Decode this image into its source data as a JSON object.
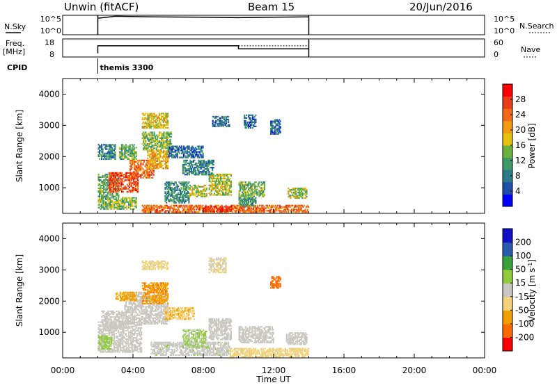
{
  "header": {
    "radar": "Unwin (fitACF)",
    "beam": "Beam 15",
    "date": "20/Jun/2016"
  },
  "panels": {
    "nsky_label": "N.Sky",
    "nsearch_label": "N.Search",
    "freq_label": "Freq.",
    "freq_unit": "[MHz]",
    "nave_label": "Nave",
    "cpid_label": "CPID",
    "cpid_value": "themis 3300",
    "noise_ticks": [
      "10^5",
      "10^0"
    ],
    "freq_ticks": [
      "18",
      "8"
    ],
    "nave_ticks": [
      "60",
      "0"
    ]
  },
  "colors": {
    "power": [
      "#0000ff",
      "#1f4fa8",
      "#2b7a8a",
      "#3f9a6a",
      "#6ab23c",
      "#e8c20a",
      "#f29a10",
      "#f06a1a",
      "#e83c1a",
      "#ff0000"
    ],
    "velocity": [
      "#ff0000",
      "#ff6a00",
      "#f2a000",
      "#f2d27a",
      "#c8c8c0",
      "#8ecc3a",
      "#3aa03a",
      "#2a5ab0",
      "#1010c8"
    ]
  },
  "chart_data": [
    {
      "type": "heatmap",
      "name": "power",
      "title": "",
      "ylabel": "Slant Range [km]",
      "xlim": [
        0,
        24
      ],
      "ylim": [
        180,
        4500
      ],
      "yticks": [
        "4000",
        "3000",
        "2000",
        "1000"
      ],
      "ytick_values": [
        4000,
        3000,
        2000,
        1000
      ],
      "colorbar_label": "Power [dB]",
      "colorbar_ticks": [
        "28",
        "24",
        "20",
        "16",
        "12",
        "8",
        "4"
      ],
      "colorbar_tick_values": [
        28,
        24,
        20,
        16,
        12,
        8,
        4
      ],
      "colorbar_range": [
        0,
        32
      ],
      "grid": false,
      "regions": [
        {
          "t": [
            2.0,
            4.2
          ],
          "r": [
            300,
            700
          ],
          "value": 14
        },
        {
          "t": [
            2.0,
            3.2
          ],
          "r": [
            700,
            1450
          ],
          "value": 12
        },
        {
          "t": [
            2.6,
            4.3
          ],
          "r": [
            850,
            1500
          ],
          "value": 26
        },
        {
          "t": [
            3.8,
            5.2
          ],
          "r": [
            1300,
            1900
          ],
          "value": 24
        },
        {
          "t": [
            4.8,
            6.0
          ],
          "r": [
            1600,
            2200
          ],
          "value": 20
        },
        {
          "t": [
            3.2,
            4.2
          ],
          "r": [
            1900,
            2400
          ],
          "value": 13
        },
        {
          "t": [
            4.5,
            6.2
          ],
          "r": [
            2200,
            2800
          ],
          "value": 14
        },
        {
          "t": [
            4.5,
            6.0
          ],
          "r": [
            2900,
            3400
          ],
          "value": 18
        },
        {
          "t": [
            2.0,
            3.0
          ],
          "r": [
            1900,
            2400
          ],
          "value": 9
        },
        {
          "t": [
            4.5,
            14.0
          ],
          "r": [
            200,
            450
          ],
          "value": 24
        },
        {
          "t": [
            8.0,
            9.6
          ],
          "r": [
            230,
            420
          ],
          "value": 28
        },
        {
          "t": [
            5.8,
            7.2
          ],
          "r": [
            500,
            1200
          ],
          "value": 10
        },
        {
          "t": [
            7.2,
            8.2
          ],
          "r": [
            700,
            1100
          ],
          "value": 16
        },
        {
          "t": [
            8.3,
            9.6
          ],
          "r": [
            750,
            1450
          ],
          "value": 16
        },
        {
          "t": [
            10.0,
            11.5
          ],
          "r": [
            700,
            1200
          ],
          "value": 13
        },
        {
          "t": [
            12.8,
            13.9
          ],
          "r": [
            650,
            1000
          ],
          "value": 16
        },
        {
          "t": [
            6.8,
            8.6
          ],
          "r": [
            1400,
            1900
          ],
          "value": 9
        },
        {
          "t": [
            6.0,
            8.0
          ],
          "r": [
            1950,
            2350
          ],
          "value": 7
        },
        {
          "t": [
            8.5,
            9.5
          ],
          "r": [
            2950,
            3300
          ],
          "value": 7
        },
        {
          "t": [
            10.3,
            11.0
          ],
          "r": [
            2900,
            3350
          ],
          "value": 7
        },
        {
          "t": [
            11.8,
            12.4
          ],
          "r": [
            2700,
            3200
          ],
          "value": 7
        },
        {
          "t": [
            10.0,
            11.0
          ],
          "r": [
            400,
            700
          ],
          "value": 11
        }
      ]
    },
    {
      "type": "heatmap",
      "name": "velocity",
      "title": "",
      "ylabel": "Slant Range [km]",
      "xlabel": "Time UT",
      "xlim": [
        0,
        24
      ],
      "ylim": [
        180,
        4500
      ],
      "yticks": [
        "4000",
        "3000",
        "2000",
        "1000"
      ],
      "ytick_values": [
        4000,
        3000,
        2000,
        1000
      ],
      "xticks": [
        "00:00",
        "04:00",
        "08:00",
        "12:00",
        "16:00",
        "20:00",
        "00:00"
      ],
      "xtick_values": [
        0,
        4,
        8,
        12,
        16,
        20,
        24
      ],
      "colorbar_label": "Velocity [m s^-1]",
      "colorbar_ticks": [
        "200",
        "100",
        "50",
        "15",
        "-15",
        "-50",
        "-100",
        "-200"
      ],
      "colorbar_tick_values": [
        200,
        100,
        50,
        15,
        -15,
        -50,
        -100,
        -200
      ],
      "colorbar_range": [
        -300,
        300
      ],
      "grid": false,
      "regions": [
        {
          "t": [
            2.0,
            4.5
          ],
          "r": [
            350,
            1350
          ],
          "value": 0
        },
        {
          "t": [
            2.2,
            3.5
          ],
          "r": [
            1100,
            1700
          ],
          "value": 0
        },
        {
          "t": [
            3.5,
            6.0
          ],
          "r": [
            1250,
            2300
          ],
          "value": 0
        },
        {
          "t": [
            5.0,
            9.5
          ],
          "r": [
            250,
            700
          ],
          "value": 5
        },
        {
          "t": [
            8.3,
            9.6
          ],
          "r": [
            750,
            1450
          ],
          "value": 0
        },
        {
          "t": [
            12.7,
            13.9
          ],
          "r": [
            600,
            1000
          ],
          "value": 0
        },
        {
          "t": [
            10.0,
            12.0
          ],
          "r": [
            650,
            1200
          ],
          "value": 0
        },
        {
          "t": [
            5.8,
            7.5
          ],
          "r": [
            1400,
            1800
          ],
          "value": -90
        },
        {
          "t": [
            4.5,
            6.0
          ],
          "r": [
            1900,
            2600
          ],
          "value": -150
        },
        {
          "t": [
            4.5,
            6.0
          ],
          "r": [
            3000,
            3300
          ],
          "value": -60
        },
        {
          "t": [
            6.8,
            8.2
          ],
          "r": [
            500,
            1100
          ],
          "value": 40
        },
        {
          "t": [
            9.5,
            14.0
          ],
          "r": [
            200,
            500
          ],
          "value": -60
        },
        {
          "t": [
            8.3,
            9.3
          ],
          "r": [
            2900,
            3400
          ],
          "value": -40
        },
        {
          "t": [
            11.8,
            12.4
          ],
          "r": [
            2400,
            2800
          ],
          "value": -200
        },
        {
          "t": [
            2.0,
            2.8
          ],
          "r": [
            450,
            900
          ],
          "value": 60
        },
        {
          "t": [
            3.0,
            4.2
          ],
          "r": [
            2000,
            2300
          ],
          "value": -120
        }
      ]
    }
  ],
  "timeseries": {
    "nsky_level": [
      [
        2.0,
        0.85
      ],
      [
        3.0,
        0.95
      ],
      [
        5.0,
        0.92
      ],
      [
        8.0,
        0.9
      ],
      [
        10.0,
        0.88
      ],
      [
        12.0,
        0.9
      ],
      [
        14.0,
        0.92
      ]
    ],
    "freq_level": [
      [
        2.0,
        0.2
      ],
      [
        2.0,
        0.62
      ],
      [
        10.0,
        0.62
      ],
      [
        10.0,
        0.45
      ],
      [
        14.0,
        0.45
      ]
    ],
    "nave_level": [
      [
        10.0,
        0.62
      ],
      [
        14.0,
        0.62
      ]
    ],
    "data_start": 2.0,
    "data_end": 14.0
  }
}
